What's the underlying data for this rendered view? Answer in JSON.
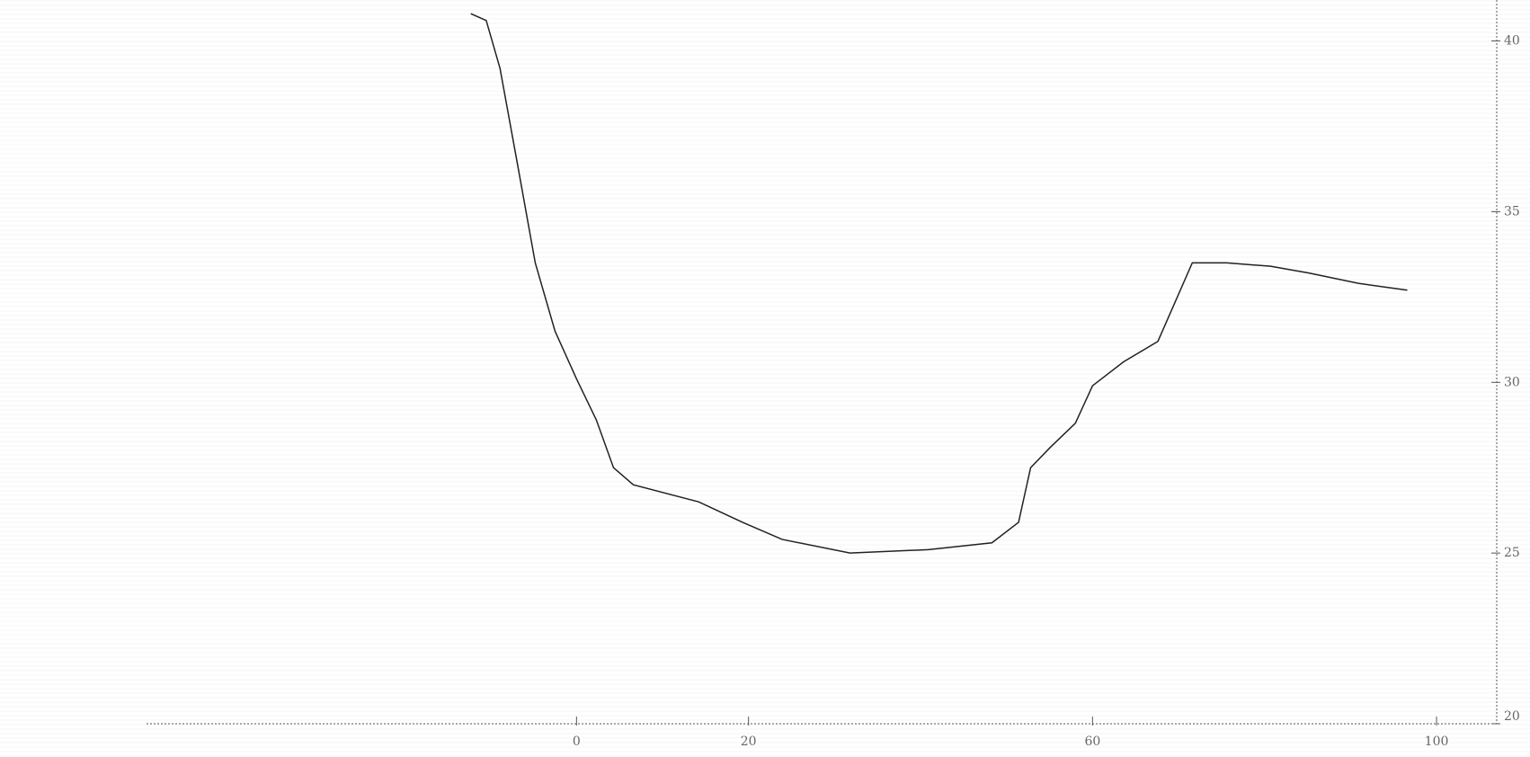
{
  "chart_data": {
    "type": "line",
    "x": [
      -12.3,
      -10.5,
      -8.9,
      -6.8,
      -4.8,
      -2.5,
      0,
      2.3,
      4.3,
      6.6,
      14.2,
      19.3,
      23.9,
      31.8,
      40.9,
      48.3,
      51.4,
      52.8,
      55.1,
      58,
      60,
      63.6,
      67.6,
      71.6,
      75.6,
      80.7,
      85.2,
      90.9,
      96.6
    ],
    "series": [
      {
        "color": "#222222",
        "values": [
          40.8,
          40.6,
          39.2,
          36.3,
          33.5,
          31.5,
          30.1,
          28.9,
          27.5,
          27,
          26.5,
          25.9,
          25.4,
          25,
          25.1,
          25.3,
          25.9,
          27.5,
          28.1,
          28.8,
          29.9,
          30.6,
          31.2,
          33.5,
          33.5,
          33.4,
          33.2,
          32.9,
          32.7
        ]
      }
    ],
    "xlim": [
      -50,
      107
    ],
    "xticks": [
      0,
      20,
      60,
      100
    ],
    "ylim": [
      20,
      41.2
    ],
    "yticks": [
      20,
      25,
      30,
      35,
      40
    ],
    "y_axis_side": "right"
  }
}
